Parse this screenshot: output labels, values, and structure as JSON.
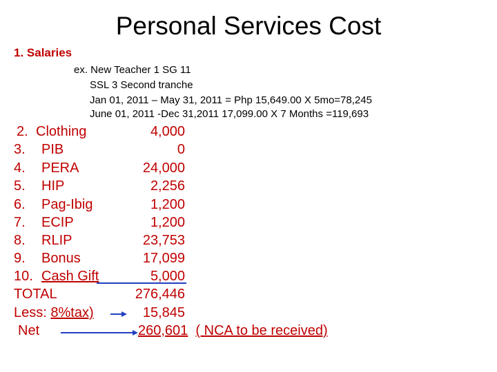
{
  "title": "Personal Services Cost",
  "salaries": {
    "heading": "1.  Salaries",
    "example": [
      "ex. New Teacher 1 SG 11",
      "SSL 3 Second tranche",
      "Jan 01, 2011 – May 31, 2011 = Php 15,649.00 X 5mo=78,245",
      "June 01, 2011  -Dec 31,2011       17,099.00 X 7 Months =119,693"
    ]
  },
  "items": [
    {
      "num": "2.",
      "label": "Clothing",
      "value": "4,000"
    },
    {
      "num": "3.",
      "label": "PIB",
      "value": "0"
    },
    {
      "num": "4.",
      "label": "PERA",
      "value": "24,000"
    },
    {
      "num": "5.",
      "label": "HIP",
      "value": "2,256"
    },
    {
      "num": "6.",
      "label": "Pag-Ibig",
      "value": "1,200"
    },
    {
      "num": "7.",
      "label": "ECIP",
      "value": "1,200"
    },
    {
      "num": "8.",
      "label": "RLIP",
      "value": "23,753"
    },
    {
      "num": "9.",
      "label": "Bonus",
      "value": "17,099"
    },
    {
      "num": "10.",
      "label": "Cash Gift",
      "value": "5,000"
    }
  ],
  "total": {
    "label": "TOTAL",
    "value": "276,446"
  },
  "less": {
    "prefix": "Less: ",
    "label": "8%tax)",
    "value": "15,845"
  },
  "net": {
    "label": "Net",
    "value": "260,601",
    "note": "( NCA to be received)"
  },
  "colors": {
    "text": "#c00000",
    "line": "#2040c0"
  }
}
